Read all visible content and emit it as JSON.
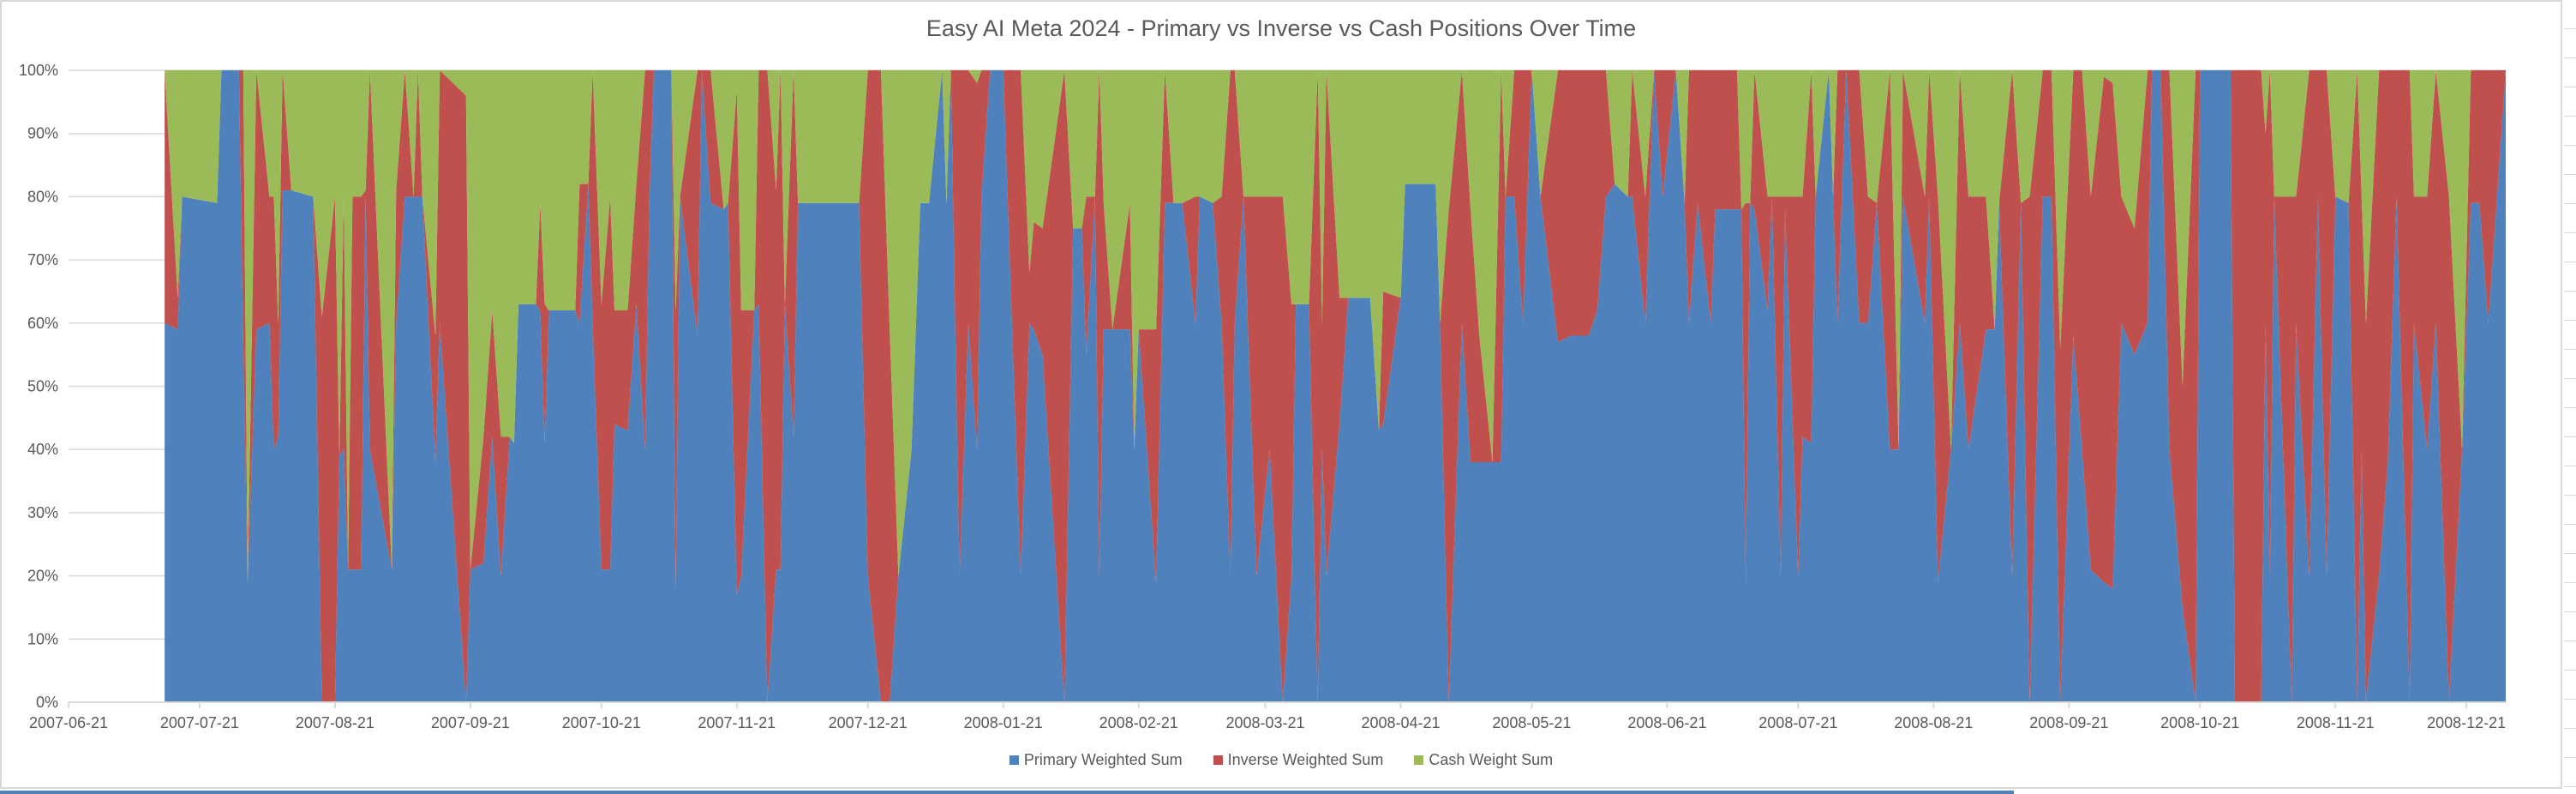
{
  "chart_data": {
    "type": "area",
    "stacking": "percent",
    "title": "Easy AI Meta 2024 - Primary vs Inverse vs Cash Positions Over Time",
    "xlabel": "",
    "ylabel": "",
    "x_range": [
      "2007-06-21",
      "2008-12-30"
    ],
    "ylim": [
      0,
      100
    ],
    "grid": "horizontal",
    "legend_position": "bottom",
    "x_ticks": [
      "2007-06-21",
      "2007-07-21",
      "2007-08-21",
      "2007-09-21",
      "2007-10-21",
      "2007-11-21",
      "2007-12-21",
      "2008-01-21",
      "2008-02-21",
      "2008-03-21",
      "2008-04-21",
      "2008-05-21",
      "2008-06-21",
      "2008-07-21",
      "2008-08-21",
      "2008-09-21",
      "2008-10-21",
      "2008-11-21",
      "2008-12-21"
    ],
    "y_ticks": [
      "0%",
      "10%",
      "20%",
      "30%",
      "40%",
      "50%",
      "60%",
      "70%",
      "80%",
      "90%",
      "100%"
    ],
    "series": [
      {
        "name": "Primary Weighted Sum",
        "color": "#4F81BD"
      },
      {
        "name": "Inverse Weighted Sum",
        "color": "#C0504D"
      },
      {
        "name": "Cash Weight Sum",
        "color": "#9BBB59"
      }
    ],
    "columns": [
      "date",
      "Primary Weighted Sum",
      "Inverse Weighted Sum",
      "Cash Weight Sum"
    ],
    "rows": [
      [
        "2007-07-13",
        60,
        40,
        0
      ],
      [
        "2007-07-16",
        59,
        5,
        36
      ],
      [
        "2007-07-17",
        80,
        0,
        20
      ],
      [
        "2007-07-25",
        79,
        0,
        21
      ],
      [
        "2007-07-26",
        100,
        0,
        0
      ],
      [
        "2007-07-30",
        100,
        0,
        0
      ],
      [
        "2007-07-31",
        57,
        43,
        0
      ],
      [
        "2007-08-01",
        19,
        0,
        81
      ],
      [
        "2007-08-03",
        59,
        41,
        0
      ],
      [
        "2007-08-06",
        60,
        20,
        20
      ],
      [
        "2007-08-07",
        40,
        40,
        20
      ],
      [
        "2007-08-08",
        42,
        18,
        40
      ],
      [
        "2007-08-09",
        81,
        19,
        0
      ],
      [
        "2007-08-11",
        81,
        0,
        19
      ],
      [
        "2007-08-16",
        80,
        0,
        20
      ],
      [
        "2007-08-18",
        0,
        61,
        39
      ],
      [
        "2007-08-21",
        0,
        80,
        20
      ],
      [
        "2007-08-22",
        39,
        0,
        61
      ],
      [
        "2007-08-23",
        40,
        40,
        20
      ],
      [
        "2007-08-24",
        21,
        0,
        79
      ],
      [
        "2007-08-25",
        21,
        59,
        20
      ],
      [
        "2007-08-27",
        21,
        59,
        20
      ],
      [
        "2007-08-28",
        80,
        1,
        19
      ],
      [
        "2007-08-29",
        40,
        60,
        0
      ],
      [
        "2007-09-03",
        21,
        0,
        79
      ],
      [
        "2007-09-04",
        60,
        21,
        19
      ],
      [
        "2007-09-06",
        80,
        20,
        0
      ],
      [
        "2007-09-08",
        80,
        0,
        20
      ],
      [
        "2007-09-09",
        80,
        20,
        0
      ],
      [
        "2007-09-10",
        80,
        0,
        20
      ],
      [
        "2007-09-13",
        38,
        20,
        42
      ],
      [
        "2007-09-14",
        60,
        40,
        0
      ],
      [
        "2007-09-20",
        0,
        96,
        4
      ],
      [
        "2007-09-21",
        21,
        0,
        79
      ],
      [
        "2007-09-24",
        22,
        20,
        58
      ],
      [
        "2007-09-26",
        42,
        20,
        38
      ],
      [
        "2007-09-28",
        20,
        22,
        58
      ],
      [
        "2007-09-30",
        42,
        0,
        58
      ],
      [
        "2007-10-01",
        41,
        0,
        59
      ],
      [
        "2007-10-02",
        63,
        0,
        37
      ],
      [
        "2007-10-06",
        63,
        0,
        37
      ],
      [
        "2007-10-07",
        62,
        17,
        21
      ],
      [
        "2007-10-08",
        41,
        22,
        37
      ],
      [
        "2007-10-09",
        62,
        0,
        38
      ],
      [
        "2007-10-15",
        62,
        0,
        38
      ],
      [
        "2007-10-16",
        60,
        22,
        18
      ],
      [
        "2007-10-18",
        82,
        0,
        18
      ],
      [
        "2007-10-19",
        60,
        40,
        0
      ],
      [
        "2007-10-21",
        21,
        42,
        37
      ],
      [
        "2007-10-23",
        21,
        59,
        20
      ],
      [
        "2007-10-24",
        44,
        18,
        38
      ],
      [
        "2007-10-27",
        43,
        19,
        38
      ],
      [
        "2007-10-29",
        63,
        19,
        18
      ],
      [
        "2007-10-31",
        40,
        60,
        0
      ],
      [
        "2007-11-01",
        80,
        20,
        0
      ],
      [
        "2007-11-02",
        100,
        0,
        0
      ],
      [
        "2007-11-06",
        100,
        0,
        0
      ],
      [
        "2007-11-07",
        18,
        44,
        38
      ],
      [
        "2007-11-08",
        80,
        0,
        20
      ],
      [
        "2007-11-12",
        58,
        42,
        0
      ],
      [
        "2007-11-13",
        100,
        0,
        0
      ],
      [
        "2007-11-15",
        79,
        21,
        0
      ],
      [
        "2007-11-18",
        78,
        0,
        22
      ],
      [
        "2007-11-19",
        79,
        0,
        21
      ],
      [
        "2007-11-21",
        17,
        80,
        3
      ],
      [
        "2007-11-22",
        20,
        42,
        38
      ],
      [
        "2007-11-25",
        62,
        0,
        38
      ],
      [
        "2007-11-26",
        63,
        37,
        0
      ],
      [
        "2007-11-28",
        0,
        100,
        0
      ],
      [
        "2007-11-30",
        21,
        60,
        19
      ],
      [
        "2007-12-01",
        21,
        79,
        0
      ],
      [
        "2007-12-02",
        63,
        0,
        37
      ],
      [
        "2007-12-04",
        42,
        58,
        0
      ],
      [
        "2007-12-05",
        79,
        0,
        21
      ],
      [
        "2007-12-19",
        79,
        0,
        21
      ],
      [
        "2007-12-21",
        20,
        80,
        0
      ],
      [
        "2007-12-24",
        0,
        100,
        0
      ],
      [
        "2007-12-26",
        0,
        59,
        41
      ],
      [
        "2007-12-28",
        20,
        0,
        80
      ],
      [
        "2007-12-31",
        40,
        0,
        60
      ],
      [
        "2008-01-02",
        79,
        0,
        21
      ],
      [
        "2008-01-04",
        79,
        0,
        21
      ],
      [
        "2008-01-07",
        100,
        0,
        0
      ],
      [
        "2008-01-08",
        79,
        0,
        21
      ],
      [
        "2008-01-09",
        100,
        0,
        0
      ],
      [
        "2008-01-11",
        20,
        80,
        0
      ],
      [
        "2008-01-13",
        60,
        40,
        0
      ],
      [
        "2008-01-15",
        40,
        58,
        2
      ],
      [
        "2008-01-16",
        80,
        20,
        0
      ],
      [
        "2008-01-18",
        100,
        0,
        0
      ],
      [
        "2008-01-21",
        100,
        0,
        0
      ],
      [
        "2008-01-25",
        20,
        80,
        0
      ],
      [
        "2008-01-27",
        60,
        8,
        32
      ],
      [
        "2008-01-28",
        59,
        17,
        24
      ],
      [
        "2008-01-30",
        55,
        20,
        25
      ],
      [
        "2008-02-04",
        0,
        100,
        0
      ],
      [
        "2008-02-06",
        75,
        0,
        25
      ],
      [
        "2008-02-08",
        75,
        0,
        25
      ],
      [
        "2008-02-09",
        55,
        25,
        20
      ],
      [
        "2008-02-11",
        80,
        0,
        20
      ],
      [
        "2008-02-12",
        20,
        80,
        0
      ],
      [
        "2008-02-13",
        59,
        20,
        21
      ],
      [
        "2008-02-15",
        59,
        0,
        41
      ],
      [
        "2008-02-19",
        59,
        20,
        21
      ],
      [
        "2008-02-20",
        40,
        0,
        60
      ],
      [
        "2008-02-21",
        59,
        0,
        41
      ],
      [
        "2008-02-25",
        19,
        40,
        41
      ],
      [
        "2008-02-27",
        79,
        21,
        0
      ],
      [
        "2008-02-29",
        79,
        0,
        21
      ],
      [
        "2008-03-02",
        79,
        0,
        21
      ],
      [
        "2008-03-05",
        60,
        20,
        20
      ],
      [
        "2008-03-06",
        80,
        0,
        20
      ],
      [
        "2008-03-09",
        79,
        0,
        21
      ],
      [
        "2008-03-11",
        60,
        20,
        20
      ],
      [
        "2008-03-13",
        20,
        80,
        0
      ],
      [
        "2008-03-14",
        60,
        40,
        0
      ],
      [
        "2008-03-16",
        80,
        0,
        20
      ],
      [
        "2008-03-19",
        20,
        60,
        20
      ],
      [
        "2008-03-22",
        40,
        40,
        20
      ],
      [
        "2008-03-25",
        0,
        80,
        20
      ],
      [
        "2008-03-27",
        20,
        43,
        37
      ],
      [
        "2008-03-28",
        63,
        0,
        37
      ],
      [
        "2008-03-31",
        63,
        0,
        37
      ],
      [
        "2008-04-02",
        0,
        100,
        0
      ],
      [
        "2008-04-03",
        40,
        20,
        40
      ],
      [
        "2008-04-04",
        20,
        80,
        0
      ],
      [
        "2008-04-07",
        44,
        20,
        36
      ],
      [
        "2008-04-09",
        64,
        0,
        36
      ],
      [
        "2008-04-14",
        64,
        0,
        36
      ],
      [
        "2008-04-16",
        43,
        0,
        57
      ],
      [
        "2008-04-17",
        44,
        21,
        35
      ],
      [
        "2008-04-21",
        64,
        0,
        36
      ],
      [
        "2008-04-22",
        82,
        0,
        18
      ],
      [
        "2008-04-29",
        82,
        0,
        18
      ],
      [
        "2008-04-30",
        60,
        0,
        40
      ],
      [
        "2008-05-02",
        0,
        78,
        22
      ],
      [
        "2008-05-05",
        60,
        40,
        0
      ],
      [
        "2008-05-07",
        38,
        40,
        22
      ],
      [
        "2008-05-09",
        38,
        20,
        42
      ],
      [
        "2008-05-12",
        38,
        0,
        62
      ],
      [
        "2008-05-14",
        38,
        62,
        0
      ],
      [
        "2008-05-15",
        80,
        0,
        20
      ],
      [
        "2008-05-17",
        80,
        20,
        0
      ],
      [
        "2008-05-19",
        60,
        40,
        0
      ],
      [
        "2008-05-21",
        100,
        0,
        0
      ],
      [
        "2008-05-23",
        80,
        0,
        20
      ],
      [
        "2008-05-27",
        57,
        43,
        0
      ],
      [
        "2008-05-30",
        58,
        42,
        0
      ],
      [
        "2008-06-03",
        58,
        42,
        0
      ],
      [
        "2008-06-05",
        62,
        38,
        0
      ],
      [
        "2008-06-07",
        80,
        20,
        0
      ],
      [
        "2008-06-09",
        82,
        0,
        18
      ],
      [
        "2008-06-12",
        80,
        0,
        20
      ],
      [
        "2008-06-13",
        80,
        20,
        0
      ],
      [
        "2008-06-16",
        60,
        20,
        20
      ],
      [
        "2008-06-18",
        100,
        0,
        0
      ],
      [
        "2008-06-20",
        80,
        20,
        0
      ],
      [
        "2008-06-23",
        100,
        0,
        0
      ],
      [
        "2008-06-25",
        79,
        0,
        21
      ],
      [
        "2008-06-26",
        60,
        40,
        0
      ],
      [
        "2008-06-28",
        79,
        21,
        0
      ],
      [
        "2008-07-01",
        60,
        40,
        0
      ],
      [
        "2008-07-02",
        78,
        22,
        0
      ],
      [
        "2008-07-07",
        78,
        22,
        0
      ],
      [
        "2008-07-08",
        78,
        0,
        22
      ],
      [
        "2008-07-09",
        19,
        60,
        21
      ],
      [
        "2008-07-10",
        79,
        0,
        21
      ],
      [
        "2008-07-11",
        78,
        22,
        0
      ],
      [
        "2008-07-14",
        62,
        18,
        20
      ],
      [
        "2008-07-15",
        80,
        0,
        20
      ],
      [
        "2008-07-17",
        20,
        60,
        20
      ],
      [
        "2008-07-18",
        78,
        2,
        20
      ],
      [
        "2008-07-21",
        20,
        60,
        20
      ],
      [
        "2008-07-22",
        42,
        38,
        20
      ],
      [
        "2008-07-24",
        41,
        59,
        0
      ],
      [
        "2008-07-25",
        80,
        0,
        20
      ],
      [
        "2008-07-28",
        100,
        0,
        0
      ],
      [
        "2008-07-29",
        80,
        0,
        20
      ],
      [
        "2008-07-30",
        60,
        40,
        0
      ],
      [
        "2008-08-01",
        100,
        0,
        0
      ],
      [
        "2008-08-04",
        60,
        40,
        0
      ],
      [
        "2008-08-06",
        60,
        20,
        20
      ],
      [
        "2008-08-08",
        79,
        0,
        21
      ],
      [
        "2008-08-11",
        40,
        60,
        0
      ],
      [
        "2008-08-13",
        40,
        0,
        60
      ],
      [
        "2008-08-14",
        80,
        20,
        0
      ],
      [
        "2008-08-19",
        60,
        20,
        20
      ],
      [
        "2008-08-20",
        80,
        20,
        0
      ],
      [
        "2008-08-22",
        19,
        61,
        20
      ],
      [
        "2008-08-25",
        40,
        0,
        60
      ],
      [
        "2008-08-27",
        60,
        40,
        0
      ],
      [
        "2008-08-29",
        40,
        40,
        20
      ],
      [
        "2008-09-02",
        59,
        21,
        20
      ],
      [
        "2008-09-04",
        59,
        0,
        41
      ],
      [
        "2008-09-05",
        79,
        0,
        21
      ],
      [
        "2008-09-08",
        20,
        80,
        0
      ],
      [
        "2008-09-10",
        79,
        0,
        21
      ],
      [
        "2008-09-12",
        0,
        80,
        20
      ],
      [
        "2008-09-15",
        80,
        20,
        0
      ],
      [
        "2008-09-17",
        80,
        20,
        0
      ],
      [
        "2008-09-19",
        0,
        56,
        44
      ],
      [
        "2008-09-22",
        58,
        42,
        0
      ],
      [
        "2008-09-24",
        40,
        60,
        0
      ],
      [
        "2008-09-26",
        21,
        59,
        20
      ],
      [
        "2008-09-29",
        19,
        80,
        1
      ],
      [
        "2008-10-01",
        18,
        80,
        2
      ],
      [
        "2008-10-03",
        60,
        20,
        20
      ],
      [
        "2008-10-06",
        55,
        20,
        25
      ],
      [
        "2008-10-09",
        60,
        40,
        0
      ],
      [
        "2008-10-10",
        100,
        0,
        0
      ],
      [
        "2008-10-12",
        100,
        0,
        0
      ],
      [
        "2008-10-14",
        40,
        60,
        0
      ],
      [
        "2008-10-17",
        15,
        35,
        50
      ],
      [
        "2008-10-20",
        0,
        100,
        0
      ],
      [
        "2008-10-21",
        100,
        0,
        0
      ],
      [
        "2008-10-28",
        100,
        0,
        0
      ],
      [
        "2008-10-29",
        0,
        100,
        0
      ],
      [
        "2008-11-04",
        0,
        100,
        0
      ],
      [
        "2008-11-05",
        60,
        30,
        10
      ],
      [
        "2008-11-06",
        20,
        80,
        0
      ],
      [
        "2008-11-07",
        80,
        0,
        20
      ],
      [
        "2008-11-10",
        20,
        60,
        20
      ],
      [
        "2008-11-11",
        0,
        80,
        20
      ],
      [
        "2008-11-12",
        60,
        20,
        20
      ],
      [
        "2008-11-15",
        20,
        80,
        0
      ],
      [
        "2008-11-17",
        80,
        20,
        0
      ],
      [
        "2008-11-19",
        20,
        80,
        0
      ],
      [
        "2008-11-21",
        80,
        0,
        20
      ],
      [
        "2008-11-24",
        79,
        0,
        21
      ],
      [
        "2008-11-26",
        0,
        100,
        0
      ],
      [
        "2008-11-27",
        40,
        40,
        20
      ],
      [
        "2008-11-28",
        0,
        60,
        40
      ],
      [
        "2008-12-01",
        20,
        80,
        0
      ],
      [
        "2008-12-03",
        38,
        62,
        0
      ],
      [
        "2008-12-05",
        80,
        20,
        0
      ],
      [
        "2008-12-08",
        0,
        100,
        0
      ],
      [
        "2008-12-09",
        60,
        20,
        20
      ],
      [
        "2008-12-12",
        40,
        40,
        20
      ],
      [
        "2008-12-14",
        60,
        40,
        0
      ],
      [
        "2008-12-17",
        0,
        80,
        20
      ],
      [
        "2008-12-20",
        40,
        0,
        60
      ],
      [
        "2008-12-22",
        79,
        21,
        0
      ],
      [
        "2008-12-24",
        79,
        21,
        0
      ],
      [
        "2008-12-26",
        60,
        40,
        0
      ],
      [
        "2008-12-30",
        100,
        0,
        0
      ]
    ]
  }
}
